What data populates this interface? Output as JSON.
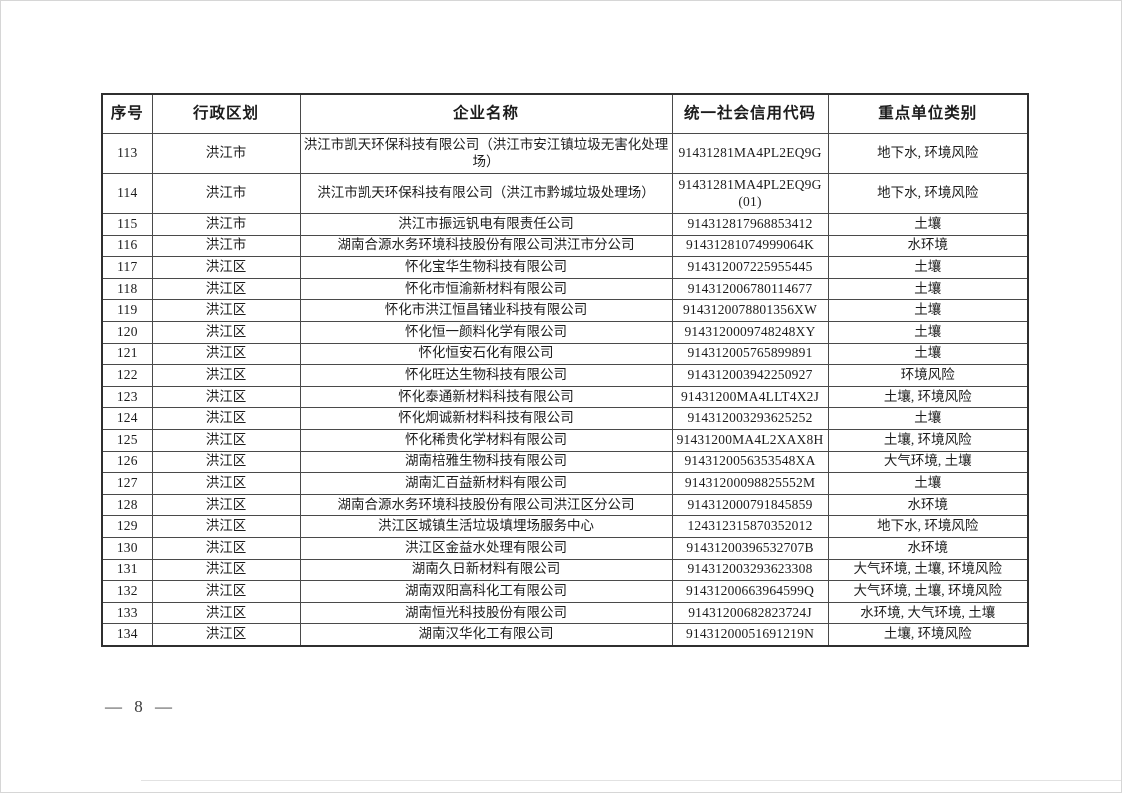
{
  "page": {
    "footer_page_label": "— 8 —"
  },
  "table": {
    "columns": [
      "序号",
      "行政区划",
      "企业名称",
      "统一社会信用代码",
      "重点单位类别"
    ],
    "rows": [
      {
        "no": "113",
        "region": "洪江市",
        "company": "洪江市凯天环保科技有限公司（洪江市安江镇垃圾无害化处理场）",
        "code": "91431281MA4PL2EQ9G",
        "category": "地下水, 环境风险"
      },
      {
        "no": "114",
        "region": "洪江市",
        "company": "洪江市凯天环保科技有限公司（洪江市黔城垃圾处理场）",
        "code": "91431281MA4PL2EQ9G",
        "code2": "(01)",
        "category": "地下水, 环境风险"
      },
      {
        "no": "115",
        "region": "洪江市",
        "company": "洪江市振远钒电有限责任公司",
        "code": "914312817968853412",
        "category": "土壤"
      },
      {
        "no": "116",
        "region": "洪江市",
        "company": "湖南合源水务环境科技股份有限公司洪江市分公司",
        "code": "91431281074999064K",
        "category": "水环境"
      },
      {
        "no": "117",
        "region": "洪江区",
        "company": "怀化宝华生物科技有限公司",
        "code": "914312007225955445",
        "category": "土壤"
      },
      {
        "no": "118",
        "region": "洪江区",
        "company": "怀化市恒渝新材料有限公司",
        "code": "914312006780114677",
        "category": "土壤"
      },
      {
        "no": "119",
        "region": "洪江区",
        "company": "怀化市洪江恒昌锗业科技有限公司",
        "code": "9143120078801356XW",
        "category": "土壤"
      },
      {
        "no": "120",
        "region": "洪江区",
        "company": "怀化恒一颜料化学有限公司",
        "code": "9143120009748248XY",
        "category": "土壤"
      },
      {
        "no": "121",
        "region": "洪江区",
        "company": "怀化恒安石化有限公司",
        "code": "914312005765899891",
        "category": "土壤"
      },
      {
        "no": "122",
        "region": "洪江区",
        "company": "怀化旺达生物科技有限公司",
        "code": "914312003942250927",
        "category": "环境风险"
      },
      {
        "no": "123",
        "region": "洪江区",
        "company": "怀化泰通新材料科技有限公司",
        "code": "91431200MA4LLT4X2J",
        "category": "土壤, 环境风险"
      },
      {
        "no": "124",
        "region": "洪江区",
        "company": "怀化炯诚新材料科技有限公司",
        "code": "914312003293625252",
        "category": "土壤"
      },
      {
        "no": "125",
        "region": "洪江区",
        "company": "怀化稀贵化学材料有限公司",
        "code": "91431200MA4L2XAX8H",
        "category": "土壤, 环境风险"
      },
      {
        "no": "126",
        "region": "洪江区",
        "company": "湖南棓雅生物科技有限公司",
        "code": "9143120056353548XA",
        "category": "大气环境, 土壤"
      },
      {
        "no": "127",
        "region": "洪江区",
        "company": "湖南汇百益新材料有限公司",
        "code": "91431200098825552M",
        "category": "土壤"
      },
      {
        "no": "128",
        "region": "洪江区",
        "company": "湖南合源水务环境科技股份有限公司洪江区分公司",
        "code": "914312000791845859",
        "category": "水环境"
      },
      {
        "no": "129",
        "region": "洪江区",
        "company": "洪江区城镇生活垃圾填埋场服务中心",
        "code": "124312315870352012",
        "category": "地下水, 环境风险"
      },
      {
        "no": "130",
        "region": "洪江区",
        "company": "洪江区金益水处理有限公司",
        "code": "91431200396532707B",
        "category": "水环境"
      },
      {
        "no": "131",
        "region": "洪江区",
        "company": "湖南久日新材料有限公司",
        "code": "914312003293623308",
        "category": "大气环境, 土壤, 环境风险"
      },
      {
        "no": "132",
        "region": "洪江区",
        "company": "湖南双阳高科化工有限公司",
        "code": "91431200663964599Q",
        "category": "大气环境, 土壤, 环境风险"
      },
      {
        "no": "133",
        "region": "洪江区",
        "company": "湖南恒光科技股份有限公司",
        "code": "91431200682823724J",
        "category": "水环境, 大气环境, 土壤"
      },
      {
        "no": "134",
        "region": "洪江区",
        "company": "湖南汉华化工有限公司",
        "code": "91431200051691219N",
        "category": "土壤, 环境风险"
      }
    ]
  }
}
